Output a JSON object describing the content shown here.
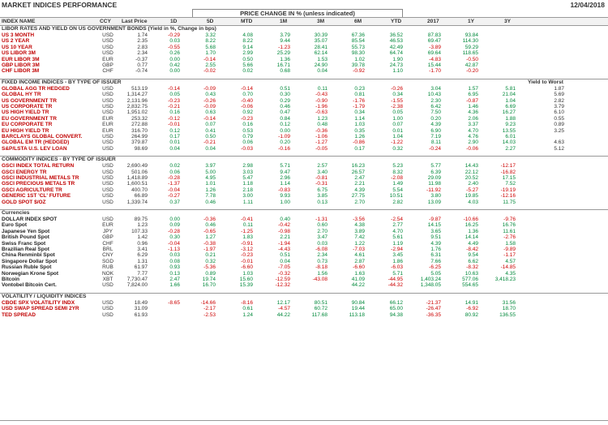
{
  "header": {
    "title": "MARKET INDICES PERFORMANCE",
    "date": "12/04/2018",
    "price_change_label": "PRICE CHANGE IN % (unless indicated)"
  },
  "columns": [
    "INDEX NAME",
    "CCY",
    "Last Price",
    "1D",
    "5D",
    "MTD",
    "1M",
    "3M",
    "6M",
    "YTD",
    "2017",
    "1Y",
    "3Y"
  ],
  "sections": [
    {
      "title": "LIBOR RATES AND YIELD ON US GOVERNMENT BONDS (Yield in %, Change in bps)",
      "extra": "",
      "name_color": "red",
      "rows": [
        [
          "US 3 MONTH",
          "USD",
          "1.74",
          "-0.29",
          "3.32",
          "4.08",
          "3.79",
          "30.39",
          "67.36",
          "36.52",
          "87.83",
          "93.84",
          ""
        ],
        [
          "US 2 YEAR",
          "USD",
          "2.35",
          "0.03",
          "8.22",
          "8.22",
          "9.44",
          "35.07",
          "85.54",
          "46.53",
          "69.47",
          "114.30",
          ""
        ],
        [
          "US 10 YEAR",
          "USD",
          "2.83",
          "-0.55",
          "5.68",
          "9.14",
          "-1.23",
          "28.41",
          "55.73",
          "42.49",
          "-3.89",
          "59.29",
          ""
        ],
        [
          "US LIBOR 3M",
          "USD",
          "2.34",
          "0.26",
          "1.70",
          "2.99",
          "25.29",
          "62.14",
          "98.30",
          "64.74",
          "69.64",
          "118.65",
          ""
        ],
        [
          "EUR LIBOR 3M",
          "EUR",
          "-0.37",
          "0.00",
          "-0.14",
          "0.50",
          "1.36",
          "1.53",
          "1.02",
          "1.90",
          "-4.83",
          "-0.50",
          ""
        ],
        [
          "GBP LIBOR 3M",
          "GBP",
          "0.77",
          "0.42",
          "2.55",
          "5.66",
          "16.71",
          "24.90",
          "39.78",
          "24.73",
          "15.44",
          "42.87",
          ""
        ],
        [
          "CHF LIBOR 3M",
          "CHF",
          "-0.74",
          "0.00",
          "-0.02",
          "0.02",
          "0.68",
          "0.04",
          "-0.92",
          "1.10",
          "-1.70",
          "-0.20",
          ""
        ]
      ]
    },
    {
      "title": "FIXED INCOME INDICES - BY TYPE OF ISSUER",
      "extra": "Yield to Worst",
      "name_color": "red",
      "rows": [
        [
          "GLOBAL AGG TR HEDGED",
          "USD",
          "513.19",
          "-0.14",
          "-0.09",
          "-0.14",
          "0.51",
          "0.11",
          "0.23",
          "-0.26",
          "3.04",
          "1.57",
          "5.81",
          "1.87"
        ],
        [
          "GLOBAL HY TR",
          "USD",
          "1,314.27",
          "0.05",
          "0.43",
          "0.70",
          "0.30",
          "-0.43",
          "0.81",
          "0.34",
          "10.43",
          "6.95",
          "21.04",
          "5.69"
        ],
        [
          "US GOVERNMENT TR",
          "USD",
          "2,131.96",
          "-0.23",
          "-0.26",
          "-0.40",
          "0.29",
          "-0.90",
          "-1.76",
          "-1.55",
          "2.30",
          "-0.87",
          "1.04",
          "2.82"
        ],
        [
          "US CORPORATE TR",
          "USD",
          "2,832.75",
          "-0.21",
          "-0.09",
          "-0.06",
          "0.46",
          "-1.96",
          "-1.79",
          "-2.38",
          "6.42",
          "1.46",
          "6.69",
          "3.79"
        ],
        [
          "US HIGH YIELD TR",
          "USD",
          "1,951.02",
          "0.16",
          "0.63",
          "0.92",
          "0.47",
          "-0.63",
          "0.34",
          "0.05",
          "7.50",
          "4.36",
          "16.27",
          "6.10"
        ],
        [
          "EU GOVERNMENT TR",
          "EUR",
          "253.32",
          "-0.12",
          "-0.14",
          "-0.23",
          "0.84",
          "1.23",
          "1.14",
          "1.00",
          "0.20",
          "2.06",
          "1.88",
          "0.55"
        ],
        [
          "EU CORPORATE TR",
          "EUR",
          "272.88",
          "-0.01",
          "0.07",
          "0.16",
          "0.12",
          "0.48",
          "1.03",
          "0.07",
          "4.39",
          "3.37",
          "9.23",
          "0.89"
        ],
        [
          "EU HIGH YIELD TR",
          "EUR",
          "316.70",
          "0.12",
          "0.41",
          "0.53",
          "0.00",
          "-0.36",
          "0.35",
          "0.01",
          "6.90",
          "4.70",
          "13.55",
          "3.25"
        ],
        [
          "BARCLAYS GLOBAL CONVERT.",
          "USD",
          "264.99",
          "0.17",
          "0.50",
          "0.79",
          "-1.09",
          "-1.06",
          "1.26",
          "1.04",
          "7.19",
          "4.76",
          "6.01",
          ""
        ],
        [
          "GLOBAL EM TR (HEDGED)",
          "USD",
          "379.87",
          "0.01",
          "-0.21",
          "0.06",
          "0.20",
          "-1.27",
          "-0.86",
          "-1.22",
          "8.11",
          "2.90",
          "14.03",
          "4.63"
        ],
        [
          "S&P/LSTA U.S. LEV LOAN",
          "USD",
          "98.69",
          "0.04",
          "0.04",
          "-0.03",
          "-0.16",
          "-0.05",
          "0.17",
          "0.32",
          "-0.24",
          "-0.06",
          "2.27",
          "5.12"
        ]
      ]
    },
    {
      "title": "COMMODITY INDICES - BY TYPE OF ISSUER",
      "extra": "",
      "name_color": "red",
      "rows": [
        [
          "GSCI INDEX TOTAL RETURN",
          "USD",
          "2,690.49",
          "0.02",
          "3.97",
          "2.98",
          "5.71",
          "2.57",
          "16.23",
          "5.23",
          "5.77",
          "14.43",
          "-12.17",
          ""
        ],
        [
          "GSCI ENERGY TR",
          "USD",
          "501.06",
          "0.06",
          "5.00",
          "3.03",
          "9.47",
          "3.40",
          "26.57",
          "8.32",
          "6.39",
          "22.12",
          "-16.82",
          ""
        ],
        [
          "GSCI INDUSTRIAL METALS TR",
          "USD",
          "1,418.89",
          "-0.28",
          "4.95",
          "5.47",
          "2.96",
          "-0.81",
          "2.47",
          "-2.08",
          "29.09",
          "20.52",
          "17.15",
          ""
        ],
        [
          "GSCI PRECIOUS METALS TR",
          "USD",
          "1,600.51",
          "-1.37",
          "1.01",
          "1.18",
          "1.14",
          "-0.31",
          "2.21",
          "1.49",
          "11.98",
          "2.40",
          "7.52",
          ""
        ],
        [
          "GSCI AGRICULTURE TR",
          "USD",
          "400.70",
          "-0.04",
          "1.26",
          "2.18",
          "-0.83",
          "6.75",
          "4.39",
          "5.54",
          "-11.92",
          "-5.27",
          "-19.19",
          ""
        ],
        [
          "GENERIC 1ST 'CL' FUTURE",
          "USD",
          "66.89",
          "-0.27",
          "7.78",
          "3.00",
          "9.93",
          "3.85",
          "27.75",
          "10.51",
          "3.80",
          "19.85",
          "-12.16",
          ""
        ],
        [
          "GOLD SPOT $/OZ",
          "USD",
          "1,339.74",
          "0.37",
          "0.46",
          "1.11",
          "1.00",
          "0.13",
          "2.70",
          "2.82",
          "13.09",
          "4.03",
          "11.75",
          ""
        ]
      ]
    },
    {
      "title": "Currencies",
      "extra": "",
      "name_color": "black",
      "rows": [
        [
          "DOLLAR INDEX SPOT",
          "USD",
          "89.75",
          "0.00",
          "-0.36",
          "-0.41",
          "0.40",
          "-1.31",
          "-3.56",
          "-2.54",
          "-9.87",
          "-10.66",
          "-9.76",
          ""
        ],
        [
          "Euro Spot",
          "EUR",
          "1.23",
          "0.09",
          "0.46",
          "0.11",
          "-0.42",
          "0.60",
          "4.38",
          "2.77",
          "14.15",
          "16.25",
          "16.76",
          ""
        ],
        [
          "Japanese Yen Spot",
          "JPY",
          "107.33",
          "-0.28",
          "-0.65",
          "-1.25",
          "-0.98",
          "2.70",
          "3.89",
          "4.70",
          "3.65",
          "1.36",
          "11.61",
          ""
        ],
        [
          "British Pound Spot",
          "GBP",
          "1.42",
          "0.30",
          "1.27",
          "1.83",
          "2.21",
          "3.47",
          "7.42",
          "5.61",
          "9.51",
          "14.14",
          "-2.76",
          ""
        ],
        [
          "Swiss Franc Spot",
          "CHF",
          "0.96",
          "-0.04",
          "-0.38",
          "-0.91",
          "-1.94",
          "0.03",
          "1.22",
          "1.19",
          "4.39",
          "4.49",
          "1.58",
          ""
        ],
        [
          "Brazilian Real Spot",
          "BRL",
          "3.41",
          "-1.13",
          "-1.97",
          "-3.12",
          "-4.43",
          "-6.08",
          "-7.03",
          "-2.94",
          "1.76",
          "-8.42",
          "-9.89",
          ""
        ],
        [
          "China Renminbi Spot",
          "CNY",
          "6.29",
          "0.03",
          "0.21",
          "-0.23",
          "0.51",
          "2.34",
          "4.61",
          "3.45",
          "6.31",
          "9.54",
          "-1.17",
          ""
        ],
        [
          "Singapore Dollar Spot",
          "SGD",
          "1.31",
          "0.08",
          "0.32",
          "-0.01",
          "0.04",
          "0.73",
          "2.87",
          "1.86",
          "7.66",
          "6.62",
          "4.57",
          ""
        ],
        [
          "Russian Ruble Spot",
          "RUB",
          "61.97",
          "0.93",
          "-5.36",
          "-6.60",
          "-7.05",
          "-8.18",
          "-6.60",
          "-6.03",
          "-6.25",
          "-8.32",
          "-14.85",
          ""
        ],
        [
          "Norwegian Krone Spot",
          "NOK",
          "7.77",
          "0.13",
          "0.89",
          "1.03",
          "-0.32",
          "1.56",
          "1.63",
          "5.71",
          "5.05",
          "10.63",
          "4.35",
          ""
        ],
        [
          "Bitcoin",
          "XBT",
          "7,730.47",
          "2.47",
          "19.74",
          "15.60",
          "-12.59",
          "-43.08",
          "41.09",
          "-44.95",
          "1,403.24",
          "577.06",
          "3,418.23",
          ""
        ],
        [
          "Vontobel Bitcoin Cert.",
          "USD",
          "7,824.00",
          "1.66",
          "16.70",
          "15.39",
          "-12.32",
          "",
          "44.22",
          "-44.32",
          "1,348.05",
          "554.65",
          "",
          ""
        ]
      ]
    },
    {
      "title": "VOLATILITY / LIQUIDITY INDICES",
      "extra": "",
      "name_color": "red",
      "rows": [
        [
          "CBOE SPX VOLATILITY INDX",
          "USD",
          "18.49",
          "-8.65",
          "-14.66",
          "-8.16",
          "12.17",
          "80.51",
          "90.84",
          "66.12",
          "-21.37",
          "14.91",
          "31.56",
          ""
        ],
        [
          "USD SWAP SPREAD SEMI 2YR",
          "USD",
          "31.09",
          "",
          "-2.17",
          "0.61",
          "-4.57",
          "60.72",
          "19.44",
          "65.00",
          "-26.47",
          "-6.92",
          "18.70",
          ""
        ],
        [
          "TED SPREAD",
          "USD",
          "61.93",
          "",
          "-2.53",
          "1.24",
          "44.22",
          "117.68",
          "113.18",
          "94.38",
          "-36.35",
          "80.92",
          "136.55",
          ""
        ]
      ]
    }
  ]
}
